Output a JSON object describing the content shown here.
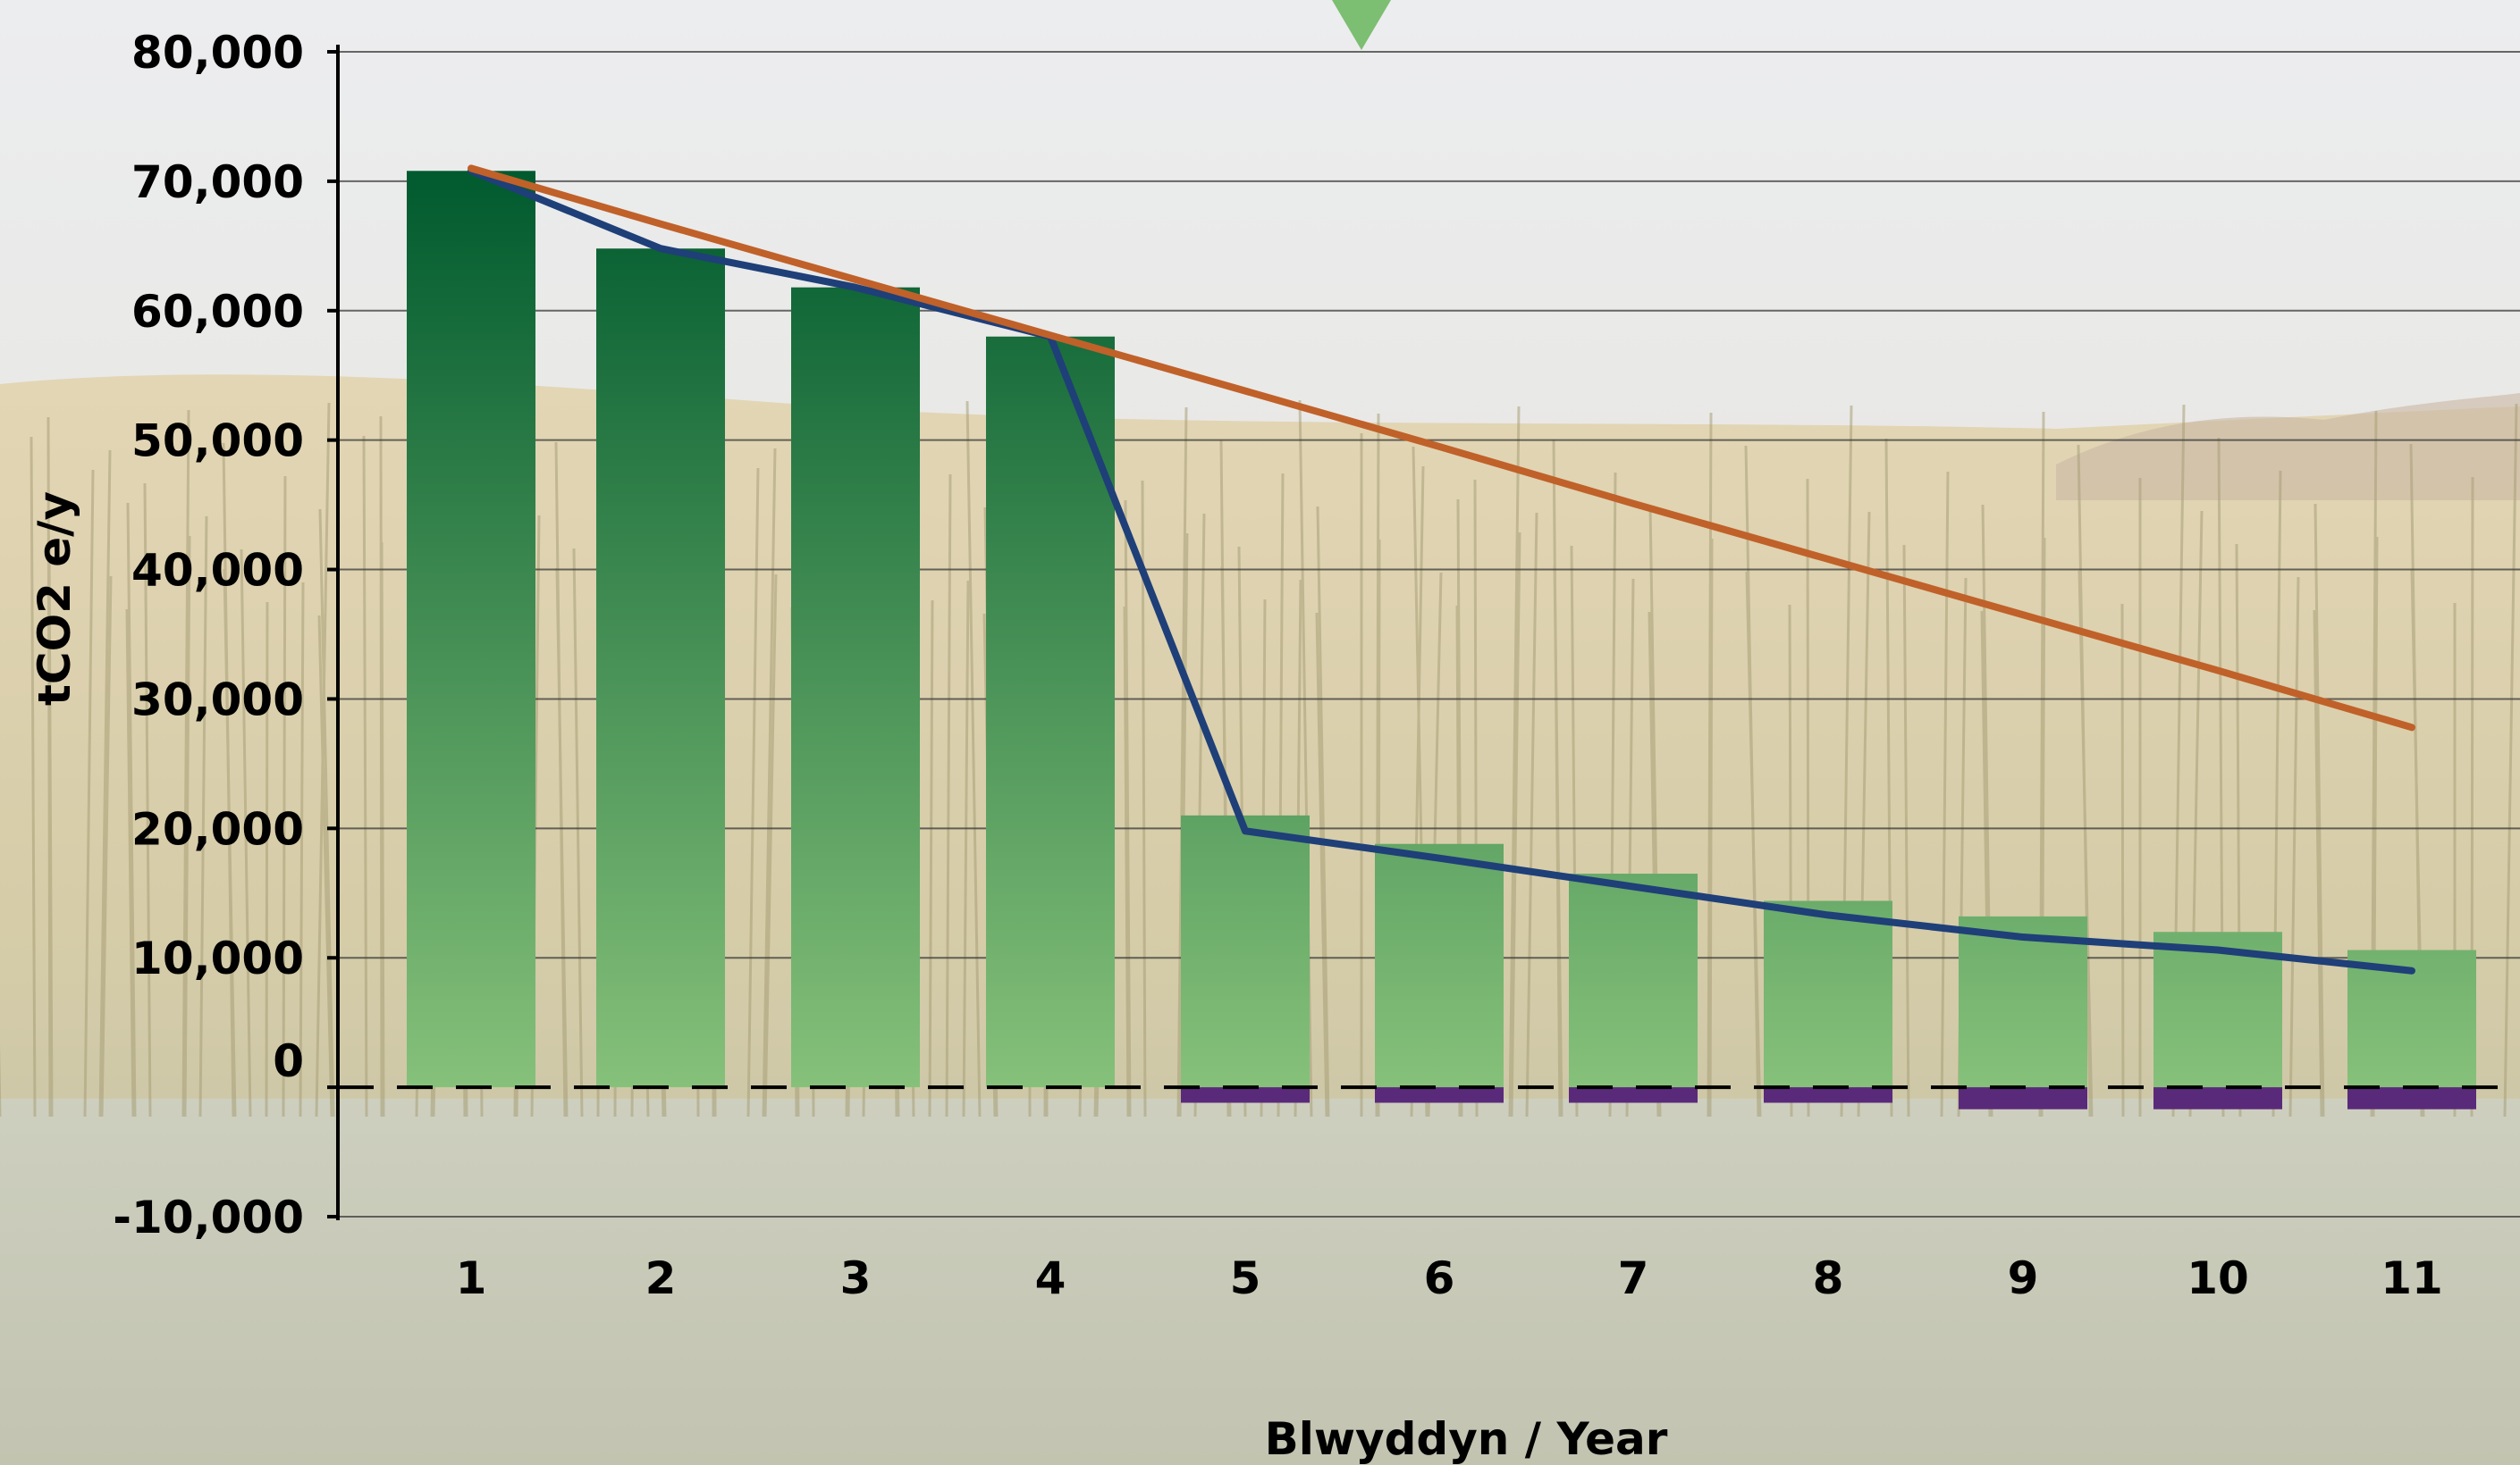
{
  "chart_data": {
    "type": "bar",
    "title": "",
    "xlabel": "Blwyddyn / Year",
    "ylabel": "tCO2 e/y",
    "ylim": [
      -10000,
      80000
    ],
    "yticks": [
      80000,
      70000,
      60000,
      50000,
      40000,
      30000,
      20000,
      10000,
      0,
      -10000
    ],
    "ytick_labels": [
      "80,000",
      "70,000",
      "60,000",
      "50,000",
      "40,000",
      "30,000",
      "20,000",
      "10,000",
      "0",
      "-10,000"
    ],
    "categories": [
      "1",
      "2",
      "3",
      "4",
      "5",
      "6",
      "7",
      "8",
      "9",
      "10",
      "11"
    ],
    "grid": true,
    "zero_line_style": "dashed",
    "series": [
      {
        "kind": "bar",
        "values": [
          70800,
          64800,
          61800,
          58000,
          21000,
          18800,
          16500,
          14400,
          13200,
          12000,
          10600
        ],
        "color_top": "#005a2e",
        "color_bottom": "#86c17a"
      },
      {
        "kind": "bar",
        "values": [
          0,
          0,
          0,
          0,
          -1200,
          -1200,
          -1200,
          -1200,
          -1700,
          -1700,
          -1700
        ],
        "color": "#5a2a7a"
      },
      {
        "kind": "line",
        "values": [
          70800,
          64800,
          61800,
          58000,
          19800,
          17700,
          15500,
          13300,
          11600,
          10600,
          9000
        ],
        "color": "#1f3f78"
      },
      {
        "kind": "line",
        "values": [
          71000,
          66700,
          62400,
          58100,
          53800,
          49500,
          45100,
          40800,
          36500,
          32200,
          27800
        ],
        "color": "#c0612a"
      }
    ],
    "marker_color": "#7cbe72"
  }
}
